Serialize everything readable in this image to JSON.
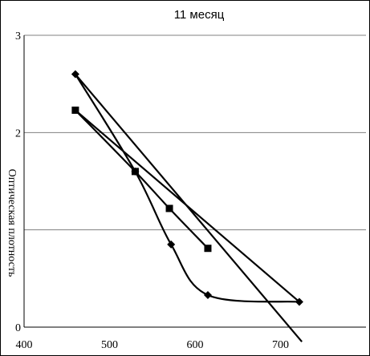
{
  "chart_data": {
    "type": "line",
    "title": "11 месяц",
    "xlabel": "",
    "ylabel": "Оптическая плотность",
    "xlim": [
      400,
      800
    ],
    "ylim": [
      0,
      3
    ],
    "x_ticks": [
      "400",
      "500",
      "600",
      "700"
    ],
    "y_ticks": [
      "0",
      "2",
      "3"
    ],
    "grid": "horizontal",
    "legend": "none",
    "series": [
      {
        "marker": "diamond",
        "points": [
          [
            460,
            2.6
          ],
          [
            530,
            1.6
          ],
          [
            572,
            0.85
          ],
          [
            615,
            0.33
          ],
          [
            722,
            0.26
          ]
        ]
      },
      {
        "marker": "square",
        "points": [
          [
            460,
            2.23
          ],
          [
            530,
            1.6
          ],
          [
            570,
            1.22
          ],
          [
            615,
            0.81
          ]
        ]
      }
    ],
    "trendlines": [
      {
        "from": [
          460,
          2.6
        ],
        "to": [
          725,
          -0.15
        ]
      },
      {
        "from": [
          460,
          2.23
        ],
        "to": [
          722,
          0.26
        ]
      }
    ]
  }
}
